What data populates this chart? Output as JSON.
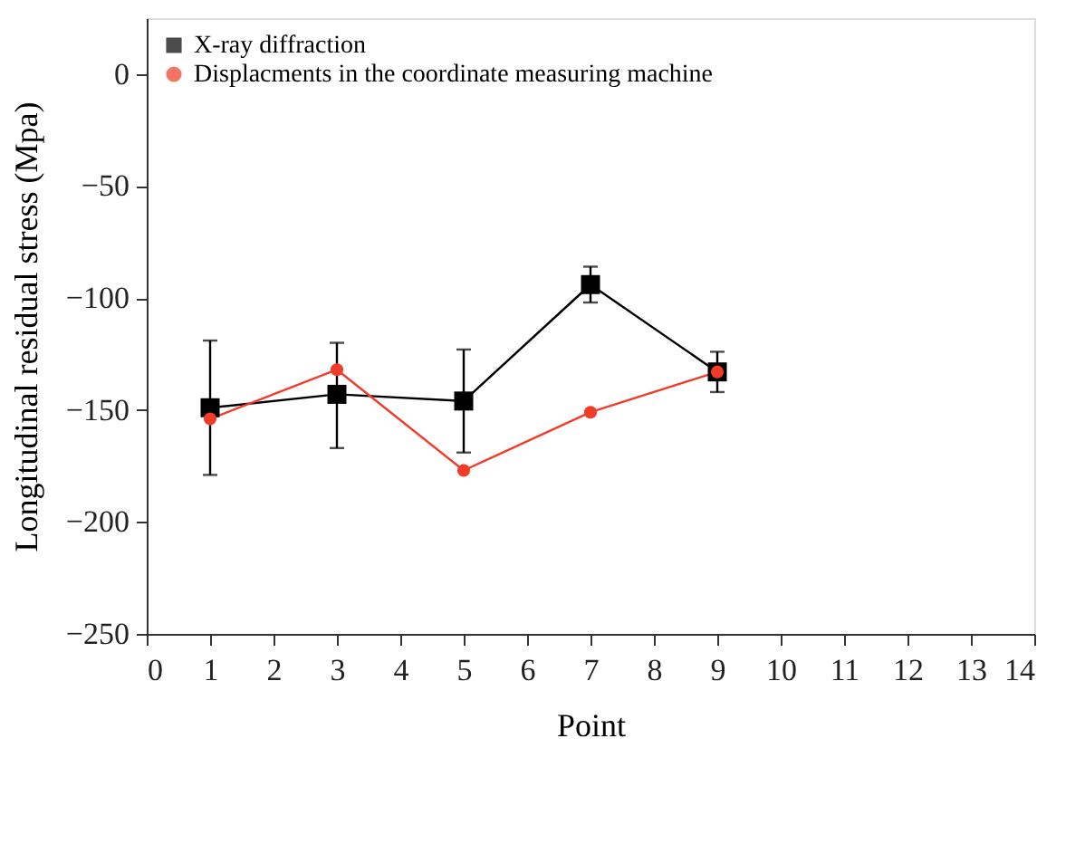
{
  "chart_data": {
    "type": "line",
    "xlabel": "Point",
    "ylabel": "Longitudinal residual stress (Mpa)",
    "x": [
      1,
      3,
      5,
      7,
      9
    ],
    "series": [
      {
        "name": "X-ray diffraction",
        "color": "#000000",
        "marker": "square",
        "values": [
          -149,
          -143,
          -146,
          -94,
          -133
        ],
        "errors": [
          [
            -179,
            -119
          ],
          [
            -167,
            -120
          ],
          [
            -169,
            -123
          ],
          [
            -102,
            -86
          ],
          [
            -142,
            -124
          ]
        ]
      },
      {
        "name": "Displacments in the coordinate measuring machine",
        "color": "#f03c28",
        "marker": "circle",
        "values": [
          -154,
          -132,
          -177,
          -151,
          -133
        ]
      }
    ],
    "xlim": [
      0,
      14
    ],
    "xticks": [
      0,
      1,
      2,
      3,
      4,
      5,
      6,
      7,
      8,
      9,
      10,
      11,
      12,
      13,
      14
    ],
    "ylim": [
      -250,
      25
    ],
    "yticks": [
      -250,
      -200,
      -150,
      -100,
      -50,
      0
    ],
    "grid": false,
    "legend": "top left",
    "line_style": "solid"
  }
}
